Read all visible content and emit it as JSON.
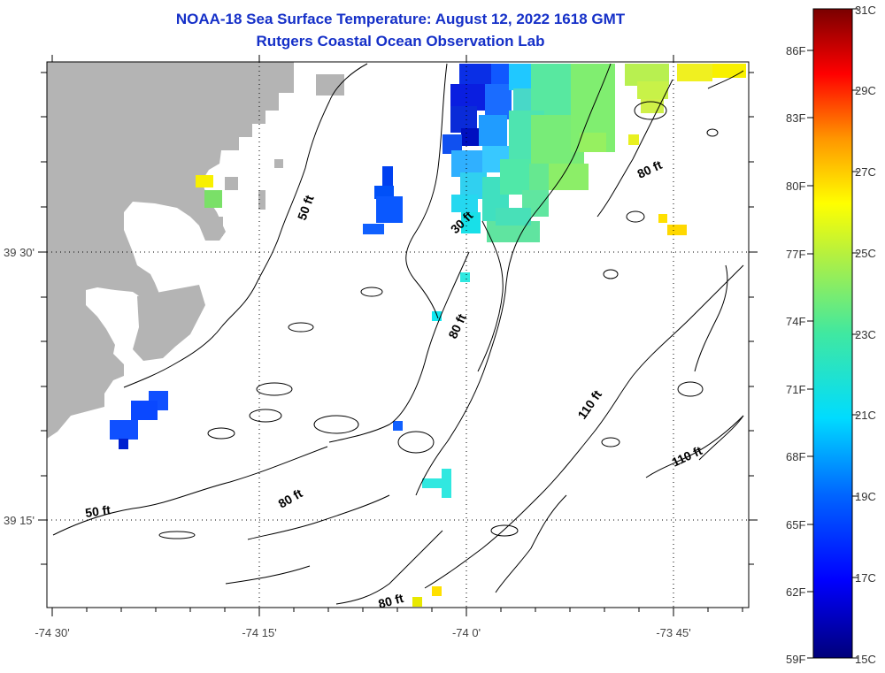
{
  "header": {
    "title": "NOAA-18 Sea Surface Temperature:  August 12, 2022 1618 GMT",
    "subtitle": "Rutgers Coastal Ocean Observation Lab"
  },
  "axes": {
    "lon_labels": [
      "-74 30'",
      "-74 15'",
      "-74 0'",
      "-73 45'"
    ],
    "lat_labels": [
      "39 30'",
      "39 15'"
    ]
  },
  "contours": [
    {
      "id": "c50a",
      "label": "50 ft"
    },
    {
      "id": "c30",
      "label": "30 ft"
    },
    {
      "id": "c80a",
      "label": "80 ft"
    },
    {
      "id": "c80b",
      "label": "80 ft"
    },
    {
      "id": "c110a",
      "label": "110 ft"
    },
    {
      "id": "c110b",
      "label": "110 ft"
    },
    {
      "id": "c50b",
      "label": "50 ft"
    },
    {
      "id": "c80c",
      "label": "80 ft"
    },
    {
      "id": "c80d",
      "label": "80 ft"
    }
  ],
  "colorbar": {
    "fahrenheit": [
      "86F",
      "83F",
      "80F",
      "77F",
      "74F",
      "71F",
      "68F",
      "65F",
      "62F",
      "59F"
    ],
    "celsius": [
      "31C",
      "29C",
      "27C",
      "25C",
      "23C",
      "21C",
      "19C",
      "17C",
      "15C"
    ]
  },
  "colors": {
    "title": "#1530c8",
    "land": "#b4b4b4"
  }
}
